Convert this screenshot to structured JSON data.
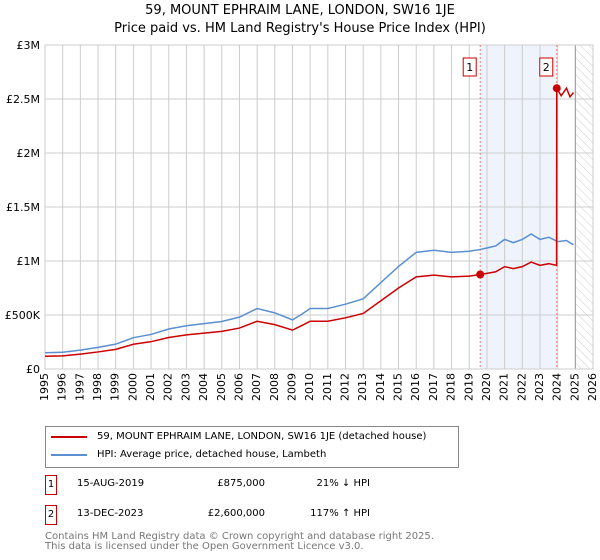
{
  "title": "59, MOUNT EPHRAIM LANE, LONDON, SW16 1JE",
  "subtitle": "Price paid vs. HM Land Registry's House Price Index (HPI)",
  "chart_data": {
    "type": "line",
    "xlim": [
      1995,
      2026
    ],
    "ylim": [
      0,
      3000000
    ],
    "x_ticks": [
      "1995",
      "1996",
      "1997",
      "1998",
      "1999",
      "2000",
      "2001",
      "2002",
      "2003",
      "2004",
      "2005",
      "2006",
      "2007",
      "2008",
      "2009",
      "2010",
      "2011",
      "2012",
      "2013",
      "2014",
      "2015",
      "2016",
      "2017",
      "2018",
      "2019",
      "2020",
      "2021",
      "2022",
      "2023",
      "2024",
      "2025",
      "2026"
    ],
    "y_ticks": [
      {
        "v": 0,
        "label": "£0"
      },
      {
        "v": 500000,
        "label": "£500K"
      },
      {
        "v": 1000000,
        "label": "£1M"
      },
      {
        "v": 1500000,
        "label": "£1.5M"
      },
      {
        "v": 2000000,
        "label": "£2M"
      },
      {
        "v": 2500000,
        "label": "£2.5M"
      },
      {
        "v": 3000000,
        "label": "£3M"
      }
    ],
    "grid": true,
    "shaded_range": [
      2019.62,
      2023.95
    ],
    "forecast_hatch_from": 2025.0,
    "series": [
      {
        "name": "59, MOUNT EPHRAIM LANE, LONDON, SW16 1JE (detached house)",
        "color": "#cc0000",
        "x": [
          1995,
          1996,
          1997,
          1998,
          1999,
          2000,
          2001,
          2002,
          2003,
          2004,
          2005,
          2006,
          2007,
          2008,
          2009,
          2009.5,
          2010,
          2011,
          2012,
          2013,
          2014,
          2015,
          2016,
          2017,
          2018,
          2019,
          2019.62,
          2020,
          2020.5,
          2021,
          2021.5,
          2022,
          2022.5,
          2023,
          2023.5,
          2023.94,
          2023.95,
          2024.2,
          2024.5,
          2024.7,
          2024.9
        ],
        "y": [
          118000,
          122000,
          138000,
          158000,
          182000,
          229000,
          253000,
          292000,
          316000,
          332000,
          348000,
          379000,
          442000,
          411000,
          360000,
          400000,
          442000,
          442000,
          474000,
          514000,
          632000,
          750000,
          853000,
          869000,
          853000,
          860000,
          875000,
          885000,
          900000,
          948000,
          930000,
          948000,
          990000,
          960000,
          975000,
          960000,
          2600000,
          2530000,
          2600000,
          2520000,
          2560000
        ]
      },
      {
        "name": "HPI: Average price, detached house, Lambeth",
        "color": "#5b8fd0",
        "x": [
          1995,
          1996,
          1997,
          1998,
          1999,
          2000,
          2001,
          2002,
          2003,
          2004,
          2005,
          2006,
          2007,
          2008,
          2009,
          2009.5,
          2010,
          2011,
          2012,
          2013,
          2014,
          2015,
          2016,
          2017,
          2018,
          2019,
          2019.62,
          2020,
          2020.5,
          2021,
          2021.5,
          2022,
          2022.5,
          2023,
          2023.5,
          2024,
          2024.5,
          2024.9
        ],
        "y": [
          150000,
          155000,
          175000,
          200000,
          230000,
          290000,
          320000,
          370000,
          400000,
          420000,
          440000,
          480000,
          560000,
          520000,
          455000,
          505000,
          560000,
          560000,
          600000,
          650000,
          800000,
          950000,
          1080000,
          1100000,
          1080000,
          1090000,
          1107000,
          1120000,
          1140000,
          1200000,
          1170000,
          1200000,
          1250000,
          1200000,
          1220000,
          1180000,
          1190000,
          1150000
        ]
      }
    ],
    "annotations": [
      {
        "label": "1",
        "x": 2019.62,
        "y": 875000
      },
      {
        "label": "2",
        "x": 2023.95,
        "y": 2600000
      }
    ]
  },
  "legend": {
    "items": [
      "59, MOUNT EPHRAIM LANE, LONDON, SW16 1JE (detached house)",
      "HPI: Average price, detached house, Lambeth"
    ]
  },
  "transactions": [
    {
      "num": "1",
      "date": "15-AUG-2019",
      "price": "£875,000",
      "hpi": "21% ↓ HPI"
    },
    {
      "num": "2",
      "date": "13-DEC-2023",
      "price": "£2,600,000",
      "hpi": "117% ↑ HPI"
    }
  ],
  "footer": [
    "Contains HM Land Registry data © Crown copyright and database right 2025.",
    "This data is licensed under the Open Government Licence v3.0."
  ]
}
